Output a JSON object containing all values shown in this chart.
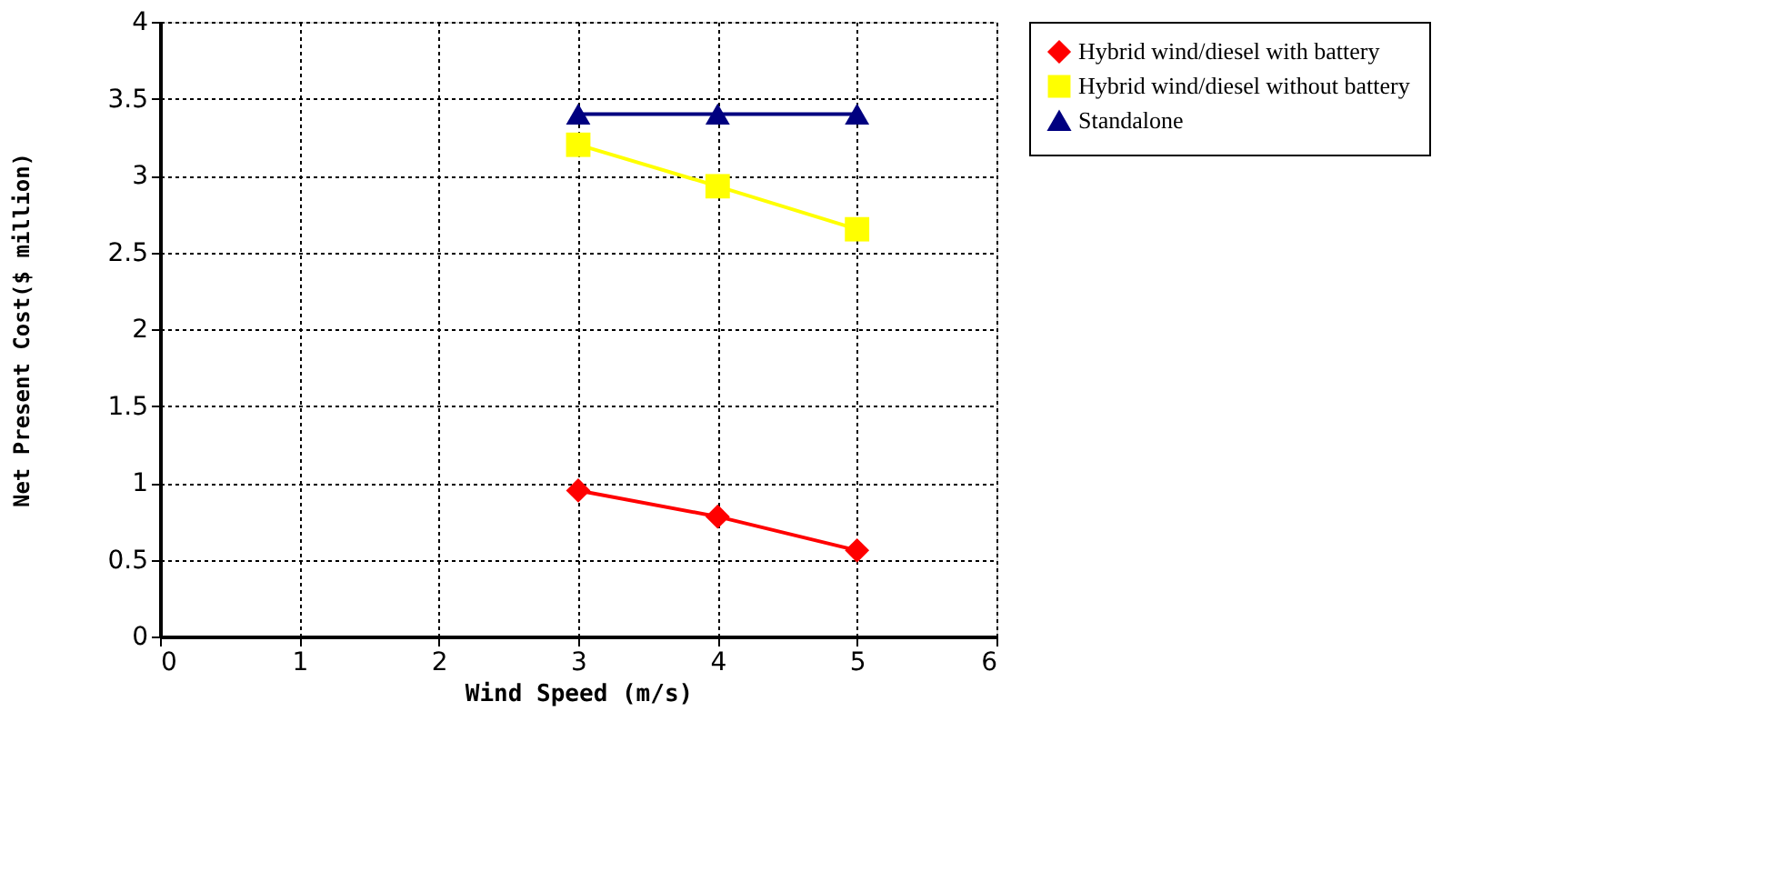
{
  "chart_data": {
    "type": "line",
    "xlabel": "Wind Speed (m/s)",
    "ylabel": "Net Present Cost($ million)",
    "x": [
      3,
      4,
      5
    ],
    "series": [
      {
        "name": "Hybrid wind/diesel with battery",
        "color": "#ff0000",
        "marker": "diamond",
        "values": [
          0.95,
          0.78,
          0.56
        ]
      },
      {
        "name": "Hybrid wind/diesel without battery",
        "color": "#ffff00",
        "marker": "square",
        "values": [
          3.2,
          2.93,
          2.65
        ]
      },
      {
        "name": "Standalone",
        "color": "#000080",
        "marker": "triangle",
        "values": [
          3.4,
          3.4,
          3.4
        ]
      }
    ],
    "xlim": [
      0,
      6
    ],
    "xticks": [
      0,
      1,
      2,
      3,
      4,
      5,
      6
    ],
    "ylim": [
      0,
      4
    ],
    "yticks": [
      0,
      0.5,
      1,
      1.5,
      2,
      2.5,
      3,
      3.5,
      4
    ],
    "grid": true,
    "legend": "top right",
    "line_style": "solid"
  }
}
